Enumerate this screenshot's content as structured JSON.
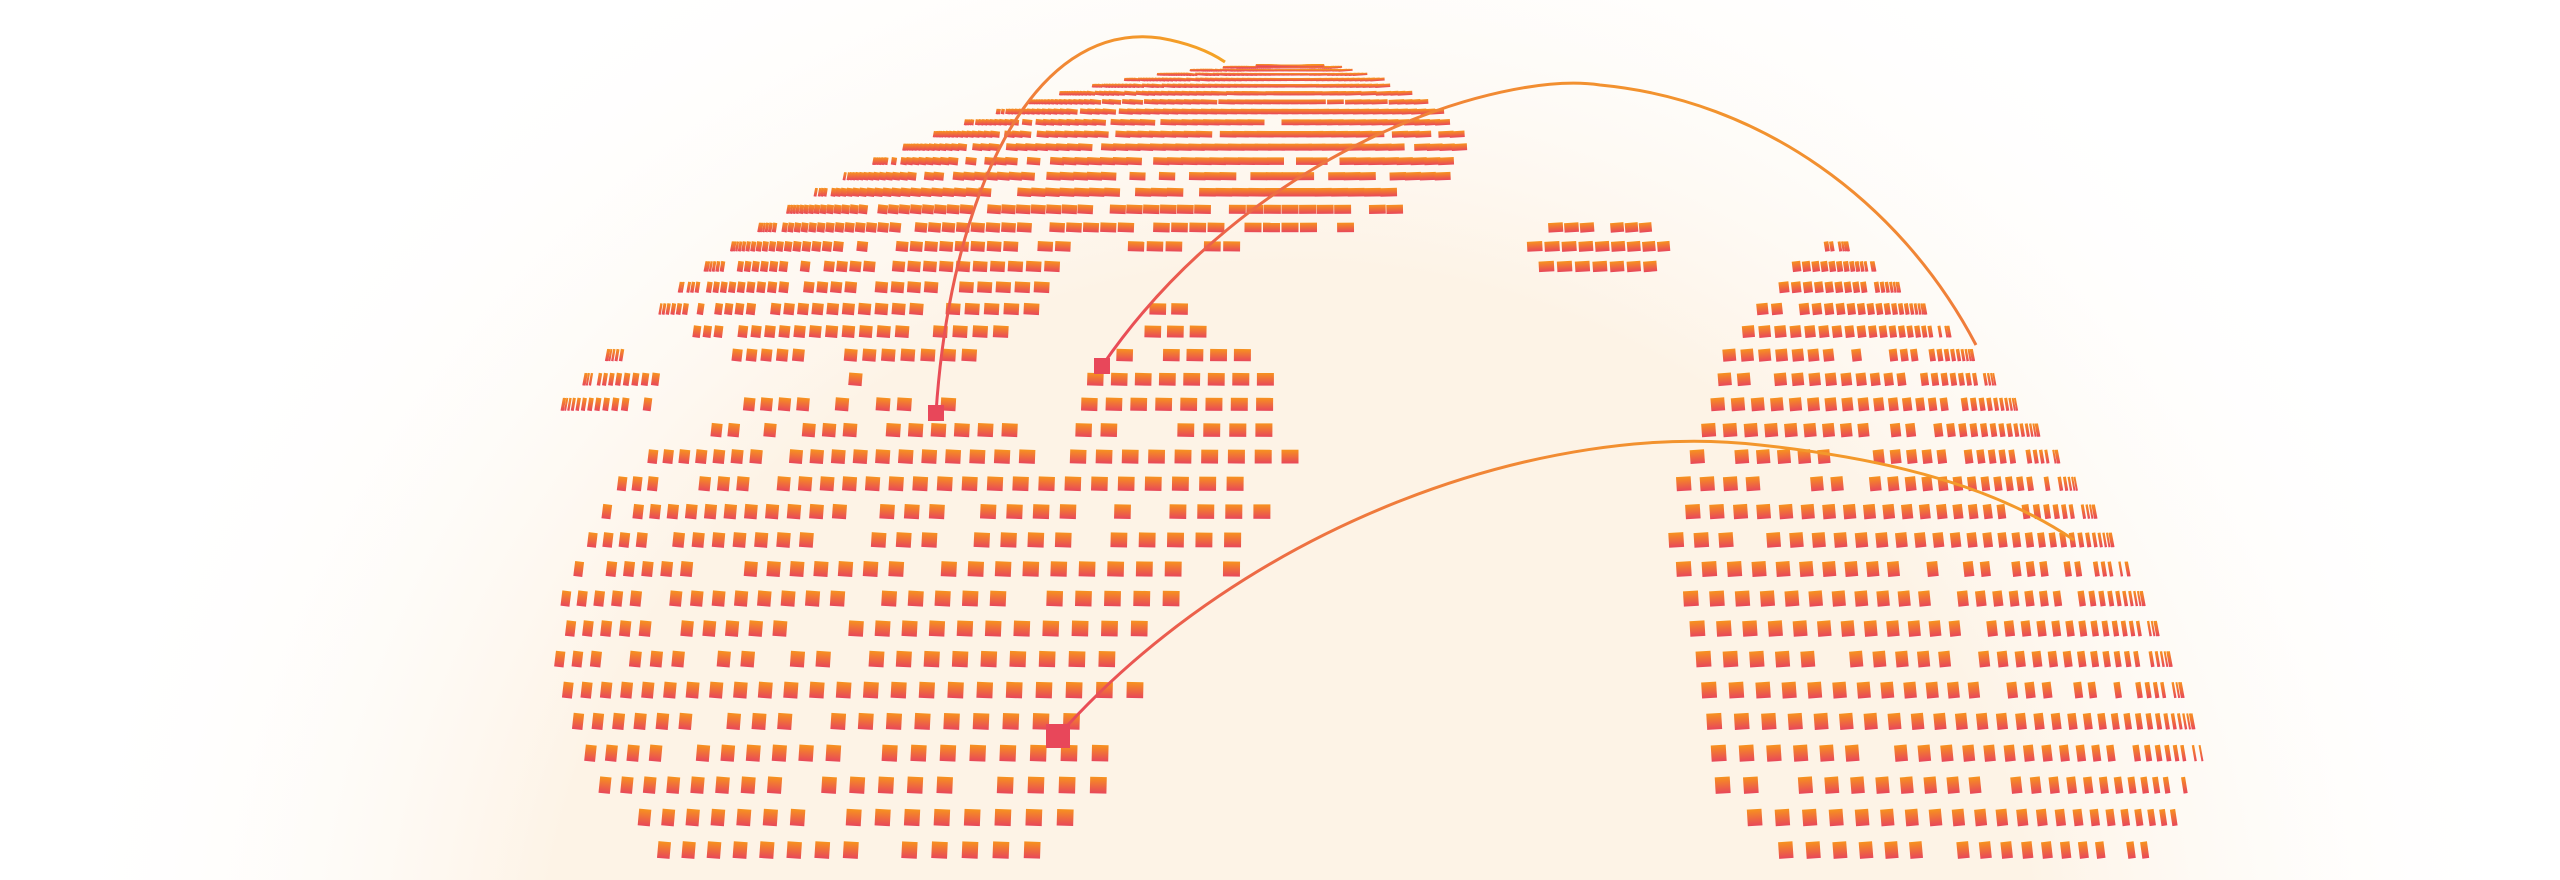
{
  "colors": {
    "dot_top": "#f7931e",
    "dot_bottom": "#e8475a",
    "marker": "#e8475a",
    "arc_start": "#e8475a",
    "arc_end": "#f5a623",
    "glow": "#fdf3e6"
  },
  "illustration": {
    "type": "dotted-globe",
    "arcs": 3,
    "markers": 3
  }
}
